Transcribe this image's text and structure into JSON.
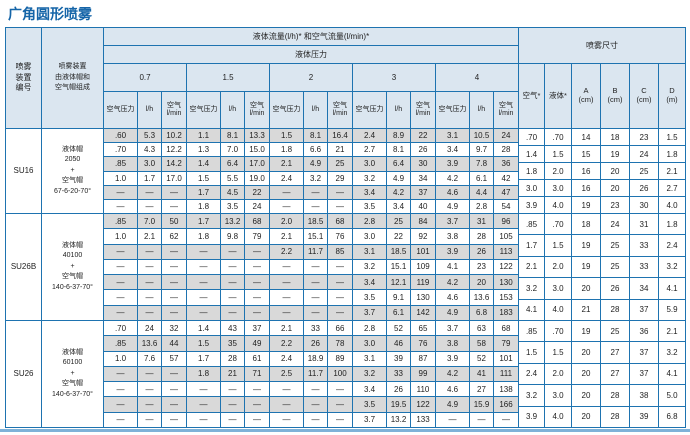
{
  "page": {
    "title": "广角圆形喷雾"
  },
  "colors": {
    "border_blue": "#1e73b0",
    "header_bg": "#dbe6f0",
    "stripe_gray": "#d9d9d9",
    "title_blue": "#1565a8",
    "footer_rule": "#7fb2d8"
  },
  "table": {
    "header": {
      "device_lines": [
        "喷雾",
        "装置",
        "编号"
      ],
      "caps_lines": [
        "喷雾装置",
        "由液体帽和",
        "空气帽组成"
      ],
      "flow_title": "液体流量(l/h)* 和空气流量(l/min)*",
      "pressure_title": "液体压力",
      "pressures": [
        "0.7",
        "1.5",
        "2",
        "3",
        "4"
      ],
      "sub": [
        [
          "空气压力"
        ],
        [
          "l/h"
        ],
        [
          "空气",
          "l/min"
        ]
      ],
      "dims_title": "喷雾尺寸",
      "dims_sub": [
        [
          "空气*"
        ],
        [
          "液体*"
        ],
        [
          "A",
          "(cm)"
        ],
        [
          "B",
          "(cm)"
        ],
        [
          "C",
          "(cm)"
        ],
        [
          "D",
          "(m)"
        ]
      ]
    },
    "sections": [
      {
        "id": "SU16",
        "caps": [
          "液体帽",
          "2050",
          "+",
          "空气帽",
          "67-6-20-70°"
        ],
        "rows": [
          [
            ".60",
            "5.3",
            "10.2",
            "1.1",
            "8.1",
            "13.3",
            "1.5",
            "8.1",
            "16.4",
            "2.4",
            "8.9",
            "22",
            "3.1",
            "10.5",
            "24"
          ],
          [
            ".70",
            "4.3",
            "12.2",
            "1.3",
            "7.0",
            "15.0",
            "1.8",
            "6.6",
            "21",
            "2.7",
            "8.1",
            "26",
            "3.4",
            "9.7",
            "28"
          ],
          [
            ".85",
            "3.0",
            "14.2",
            "1.4",
            "6.4",
            "17.0",
            "2.1",
            "4.9",
            "25",
            "3.0",
            "6.4",
            "30",
            "3.9",
            "7.8",
            "36"
          ],
          [
            "1.0",
            "1.7",
            "17.0",
            "1.5",
            "5.5",
            "19.0",
            "2.4",
            "3.2",
            "29",
            "3.2",
            "4.9",
            "34",
            "4.2",
            "6.1",
            "42"
          ],
          [
            "—",
            "—",
            "—",
            "1.7",
            "4.5",
            "22",
            "—",
            "—",
            "—",
            "3.4",
            "4.2",
            "37",
            "4.6",
            "4.4",
            "47"
          ],
          [
            "—",
            "—",
            "—",
            "1.8",
            "3.5",
            "24",
            "—",
            "—",
            "—",
            "3.5",
            "3.4",
            "40",
            "4.9",
            "2.8",
            "54"
          ]
        ],
        "dims": [
          [
            ".70",
            ".70",
            "14",
            "18",
            "23",
            "1.5"
          ],
          [
            "1.4",
            "1.5",
            "15",
            "19",
            "24",
            "1.8"
          ],
          [
            "1.8",
            "2.0",
            "16",
            "20",
            "25",
            "2.1"
          ],
          [
            "3.0",
            "3.0",
            "16",
            "20",
            "26",
            "2.7"
          ],
          [
            "3.9",
            "4.0",
            "19",
            "23",
            "30",
            "4.0"
          ]
        ]
      },
      {
        "id": "SU26B",
        "caps": [
          "液体帽",
          "40100",
          "+",
          "空气帽",
          "140-6-37-70°"
        ],
        "rows": [
          [
            ".85",
            "7.0",
            "50",
            "1.7",
            "13.2",
            "68",
            "2.0",
            "18.5",
            "68",
            "2.8",
            "25",
            "84",
            "3.7",
            "31",
            "96"
          ],
          [
            "1.0",
            "2.1",
            "62",
            "1.8",
            "9.8",
            "79",
            "2.1",
            "15.1",
            "76",
            "3.0",
            "22",
            "92",
            "3.8",
            "28",
            "105"
          ],
          [
            "—",
            "—",
            "—",
            "—",
            "—",
            "—",
            "2.2",
            "11.7",
            "85",
            "3.1",
            "18.5",
            "101",
            "3.9",
            "26",
            "113"
          ],
          [
            "—",
            "—",
            "—",
            "—",
            "—",
            "—",
            "—",
            "—",
            "—",
            "3.2",
            "15.1",
            "109",
            "4.1",
            "23",
            "122"
          ],
          [
            "—",
            "—",
            "—",
            "—",
            "—",
            "—",
            "—",
            "—",
            "—",
            "3.4",
            "12.1",
            "119",
            "4.2",
            "20",
            "130"
          ],
          [
            "—",
            "—",
            "—",
            "—",
            "—",
            "—",
            "—",
            "—",
            "—",
            "3.5",
            "9.1",
            "130",
            "4.6",
            "13.6",
            "153"
          ],
          [
            "—",
            "—",
            "—",
            "—",
            "—",
            "—",
            "—",
            "—",
            "—",
            "3.7",
            "6.1",
            "142",
            "4.9",
            "6.8",
            "183"
          ]
        ],
        "dims": [
          [
            ".85",
            ".70",
            "18",
            "24",
            "31",
            "1.8"
          ],
          [
            "1.7",
            "1.5",
            "19",
            "25",
            "33",
            "2.4"
          ],
          [
            "2.1",
            "2.0",
            "19",
            "25",
            "33",
            "3.2"
          ],
          [
            "3.2",
            "3.0",
            "20",
            "26",
            "34",
            "4.1"
          ],
          [
            "4.1",
            "4.0",
            "21",
            "28",
            "37",
            "5.9"
          ]
        ]
      },
      {
        "id": "SU26",
        "caps": [
          "液体帽",
          "60100",
          "+",
          "空气帽",
          "140-6-37-70°"
        ],
        "rows": [
          [
            ".70",
            "24",
            "32",
            "1.4",
            "43",
            "37",
            "2.1",
            "33",
            "66",
            "2.8",
            "52",
            "65",
            "3.7",
            "63",
            "68"
          ],
          [
            ".85",
            "13.6",
            "44",
            "1.5",
            "35",
            "49",
            "2.2",
            "26",
            "78",
            "3.0",
            "46",
            "76",
            "3.8",
            "58",
            "79"
          ],
          [
            "1.0",
            "7.6",
            "57",
            "1.7",
            "28",
            "61",
            "2.4",
            "18.9",
            "89",
            "3.1",
            "39",
            "87",
            "3.9",
            "52",
            "101"
          ],
          [
            "—",
            "—",
            "—",
            "1.8",
            "21",
            "71",
            "2.5",
            "11.7",
            "100",
            "3.2",
            "33",
            "99",
            "4.2",
            "41",
            "111"
          ],
          [
            "—",
            "—",
            "—",
            "—",
            "—",
            "—",
            "—",
            "—",
            "—",
            "3.4",
            "26",
            "110",
            "4.6",
            "27",
            "138"
          ],
          [
            "—",
            "—",
            "—",
            "—",
            "—",
            "—",
            "—",
            "—",
            "—",
            "3.5",
            "19.5",
            "122",
            "4.9",
            "15.9",
            "166"
          ],
          [
            "—",
            "—",
            "—",
            "—",
            "—",
            "—",
            "—",
            "—",
            "—",
            "3.7",
            "13.2",
            "133",
            "—",
            "—",
            "—"
          ]
        ],
        "dims": [
          [
            ".85",
            ".70",
            "19",
            "25",
            "36",
            "2.1"
          ],
          [
            "1.5",
            "1.5",
            "20",
            "27",
            "37",
            "3.2"
          ],
          [
            "2.4",
            "2.0",
            "20",
            "27",
            "37",
            "4.1"
          ],
          [
            "3.2",
            "3.0",
            "20",
            "28",
            "38",
            "5.0"
          ],
          [
            "3.9",
            "4.0",
            "20",
            "28",
            "39",
            "6.8"
          ]
        ]
      }
    ]
  }
}
